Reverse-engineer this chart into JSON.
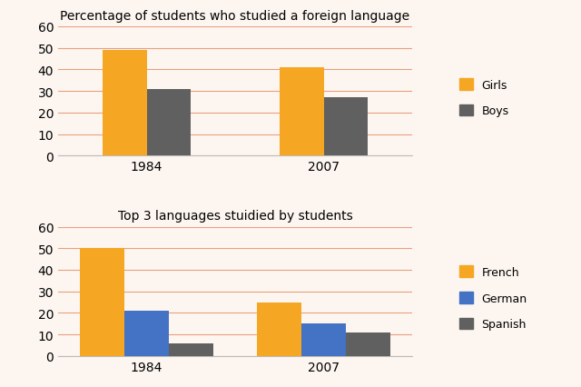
{
  "chart1": {
    "title": "Percentage of students who studied a foreign language",
    "years": [
      "1984",
      "2007"
    ],
    "girls": [
      49,
      41
    ],
    "boys": [
      31,
      27
    ],
    "colors": {
      "girls": "#F5A623",
      "boys": "#606060"
    },
    "ylim": [
      0,
      60
    ],
    "yticks": [
      0,
      10,
      20,
      30,
      40,
      50,
      60
    ],
    "legend_labels": [
      "Girls",
      "Boys"
    ]
  },
  "chart2": {
    "title": "Top 3 languages stuidied by students",
    "years": [
      "1984",
      "2007"
    ],
    "french": [
      50,
      25
    ],
    "german": [
      21,
      15
    ],
    "spanish": [
      6,
      11
    ],
    "colors": {
      "french": "#F5A623",
      "german": "#4472C4",
      "spanish": "#606060"
    },
    "ylim": [
      0,
      60
    ],
    "yticks": [
      0,
      10,
      20,
      30,
      40,
      50,
      60
    ],
    "legend_labels": [
      "French",
      "German",
      "Spanish"
    ]
  },
  "background_color": "#FDF6F0",
  "grid_color": "#E8A080",
  "bar_width": 0.25,
  "title_fontsize": 10,
  "tick_fontsize": 10
}
